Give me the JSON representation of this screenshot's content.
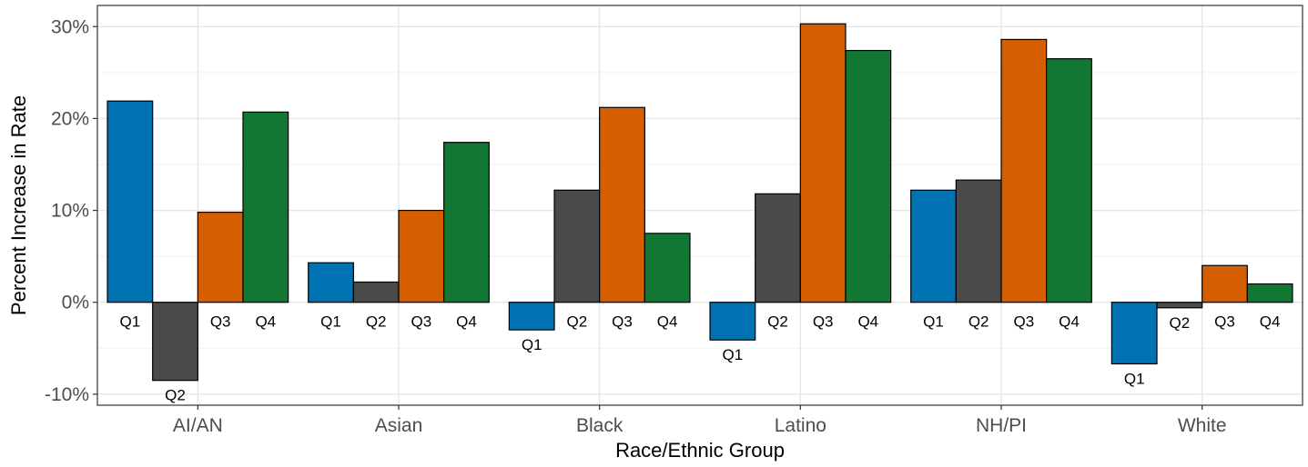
{
  "chart_data": {
    "type": "bar",
    "xlabel": "Race/Ethnic Group",
    "ylabel": "Percent Increase in Rate",
    "categories": [
      "AI/AN",
      "Asian",
      "Black",
      "Latino",
      "NH/PI",
      "White"
    ],
    "y_ticks": [
      -10,
      0,
      10,
      20,
      30
    ],
    "y_tick_labels": [
      "-10%",
      "0%",
      "10%",
      "20%",
      "30%"
    ],
    "ylim": [
      -11.2,
      32.3
    ],
    "grid": true,
    "series": [
      {
        "name": "Q1",
        "color": "#0072b2",
        "values": [
          21.9,
          4.3,
          -3.0,
          -4.1,
          12.2,
          -6.7
        ]
      },
      {
        "name": "Q2",
        "color": "#4a4a4a",
        "values": [
          -8.5,
          2.2,
          12.2,
          11.8,
          13.3,
          -0.6
        ]
      },
      {
        "name": "Q3",
        "color": "#d55e00",
        "values": [
          9.8,
          10.0,
          21.2,
          30.3,
          28.6,
          4.0
        ]
      },
      {
        "name": "Q4",
        "color": "#117733",
        "values": [
          20.7,
          17.4,
          7.5,
          27.4,
          26.5,
          2.0
        ]
      }
    ]
  }
}
